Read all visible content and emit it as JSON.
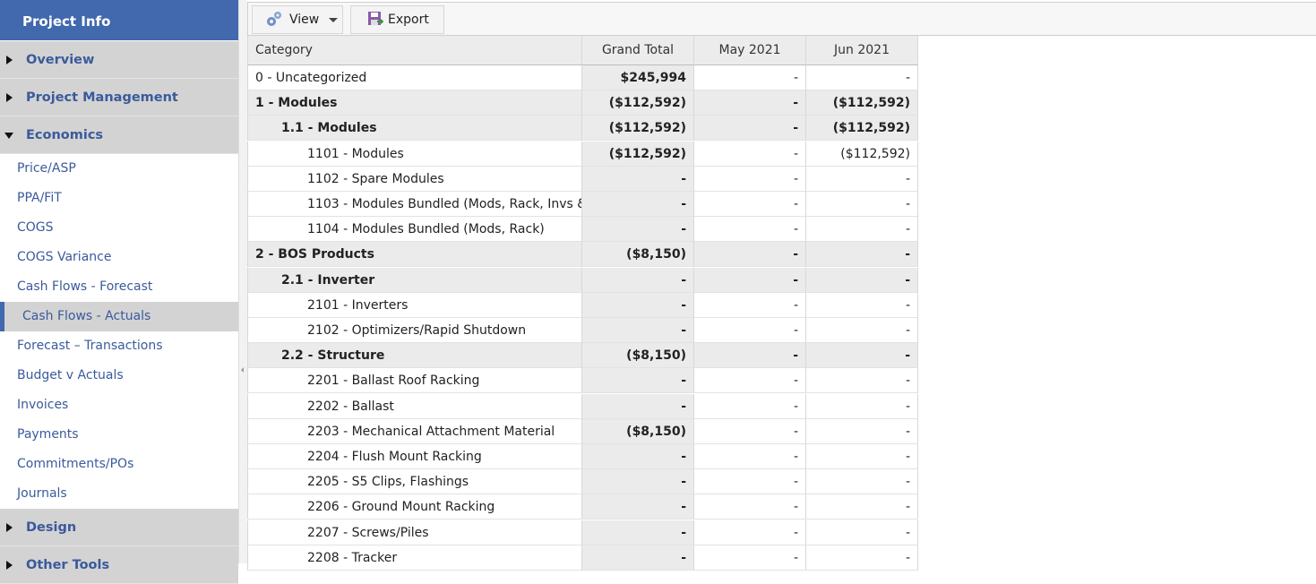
{
  "sidebar": {
    "header": "Project Info",
    "sections": [
      {
        "label": "Overview",
        "expanded": false,
        "items": []
      },
      {
        "label": "Project Management",
        "expanded": false,
        "items": []
      },
      {
        "label": "Economics",
        "expanded": true,
        "selected_index": 5,
        "items": [
          "Price/ASP",
          "PPA/FiT",
          "COGS",
          "COGS Variance",
          "Cash Flows - Forecast",
          "Cash Flows - Actuals",
          "Forecast – Transactions",
          "Budget v Actuals",
          "Invoices",
          "Payments",
          "Commitments/POs",
          "Journals"
        ]
      },
      {
        "label": "Design",
        "expanded": false,
        "items": []
      },
      {
        "label": "Other Tools",
        "expanded": false,
        "items": []
      }
    ]
  },
  "toolbar": {
    "view": "View",
    "export": "Export"
  },
  "table": {
    "columns": [
      "Category",
      "Grand Total",
      "May 2021",
      "Jun 2021"
    ],
    "rows": [
      {
        "label": "0 - Uncategorized",
        "level": 0,
        "group": false,
        "values": [
          "$245,994",
          "-",
          "-"
        ]
      },
      {
        "label": "1 - Modules",
        "level": 0,
        "group": true,
        "values": [
          "($112,592)",
          "-",
          "($112,592)"
        ]
      },
      {
        "label": "1.1 - Modules",
        "level": 1,
        "group": true,
        "values": [
          "($112,592)",
          "-",
          "($112,592)"
        ]
      },
      {
        "label": "1101 - Modules",
        "level": 2,
        "group": false,
        "values": [
          "($112,592)",
          "-",
          "($112,592)"
        ]
      },
      {
        "label": "1102 - Spare Modules",
        "level": 2,
        "group": false,
        "values": [
          "-",
          "-",
          "-"
        ]
      },
      {
        "label": "1103 - Modules Bundled (Mods, Rack, Invs &",
        "level": 2,
        "group": false,
        "values": [
          "-",
          "-",
          "-"
        ]
      },
      {
        "label": "1104 - Modules Bundled (Mods, Rack)",
        "level": 2,
        "group": false,
        "values": [
          "-",
          "-",
          "-"
        ]
      },
      {
        "label": "2 - BOS Products",
        "level": 0,
        "group": true,
        "values": [
          "($8,150)",
          "-",
          "-"
        ]
      },
      {
        "label": "2.1 - Inverter",
        "level": 1,
        "group": true,
        "values": [
          "-",
          "-",
          "-"
        ]
      },
      {
        "label": "2101 - Inverters",
        "level": 2,
        "group": false,
        "values": [
          "-",
          "-",
          "-"
        ]
      },
      {
        "label": "2102 - Optimizers/Rapid Shutdown",
        "level": 2,
        "group": false,
        "values": [
          "-",
          "-",
          "-"
        ]
      },
      {
        "label": "2.2 - Structure",
        "level": 1,
        "group": true,
        "values": [
          "($8,150)",
          "-",
          "-"
        ]
      },
      {
        "label": "2201 - Ballast Roof Racking",
        "level": 2,
        "group": false,
        "values": [
          "-",
          "-",
          "-"
        ]
      },
      {
        "label": "2202 - Ballast",
        "level": 2,
        "group": false,
        "values": [
          "-",
          "-",
          "-"
        ]
      },
      {
        "label": "2203 - Mechanical Attachment Material",
        "level": 2,
        "group": false,
        "values": [
          "($8,150)",
          "-",
          "-"
        ]
      },
      {
        "label": "2204 - Flush Mount Racking",
        "level": 2,
        "group": false,
        "values": [
          "-",
          "-",
          "-"
        ]
      },
      {
        "label": "2205 - S5 Clips, Flashings",
        "level": 2,
        "group": false,
        "values": [
          "-",
          "-",
          "-"
        ]
      },
      {
        "label": "2206 - Ground Mount Racking",
        "level": 2,
        "group": false,
        "values": [
          "-",
          "-",
          "-"
        ]
      },
      {
        "label": "2207 - Screws/Piles",
        "level": 2,
        "group": false,
        "values": [
          "-",
          "-",
          "-"
        ]
      },
      {
        "label": "2208 - Tracker",
        "level": 2,
        "group": false,
        "values": [
          "-",
          "-",
          "-"
        ]
      }
    ]
  }
}
